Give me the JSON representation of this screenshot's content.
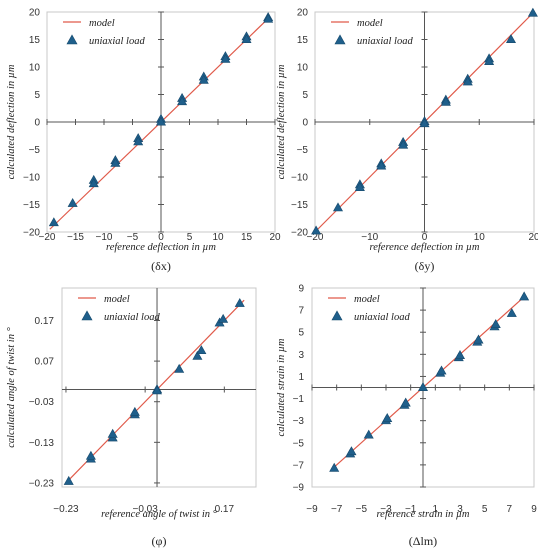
{
  "chart_data": [
    {
      "type": "scatter",
      "caption": "(δx)",
      "xlabel": "reference deflection in µm",
      "ylabel": "calculated deflection in µm",
      "xlim": [
        -20,
        20
      ],
      "ylim": [
        -20,
        20
      ],
      "xticks": [
        -20,
        -15,
        -10,
        -5,
        0,
        5,
        10,
        15,
        20
      ],
      "yticks": [
        -20,
        -15,
        -10,
        -5,
        0,
        5,
        10,
        15,
        20
      ],
      "xtick_labels": [
        "−20",
        "−15",
        "−10",
        "−5",
        "0",
        "5",
        "10",
        "15",
        "20"
      ],
      "ytick_labels": [
        "−20",
        "−15",
        "−10",
        "−5",
        "0",
        "5",
        "10",
        "15",
        "20"
      ],
      "grid": false,
      "legend_position": "top-left",
      "series": [
        {
          "name": "model",
          "kind": "line",
          "color": "#e05a4a",
          "x": [
            -19.5,
            18.8
          ],
          "y": [
            -19.5,
            18.8
          ]
        },
        {
          "name": "uniaxial load",
          "kind": "marker",
          "color": "#1f5f8b",
          "x": [
            -18.8,
            -15.5,
            -11.8,
            -11.8,
            -8,
            -8,
            -4,
            -4,
            0,
            0,
            3.7,
            3.7,
            7.5,
            7.5,
            11.3,
            11.3,
            15,
            15,
            18.8,
            18.8
          ],
          "y": [
            -18.3,
            -14.8,
            -10.6,
            -11.2,
            -7.0,
            -7.5,
            -3.0,
            -3.6,
            0.5,
            0.0,
            4.3,
            3.7,
            8.2,
            7.6,
            11.9,
            11.4,
            15.5,
            15.0,
            19.0,
            18.7
          ]
        }
      ]
    },
    {
      "type": "scatter",
      "caption": "(δy)",
      "xlabel": "reference deflection in µm",
      "ylabel": "calculated deflection in µm",
      "xlim": [
        -20,
        20
      ],
      "ylim": [
        -20,
        20
      ],
      "xticks": [
        -20,
        -10,
        0,
        10,
        20
      ],
      "yticks": [
        -20,
        -15,
        -10,
        -5,
        0,
        5,
        10,
        15,
        20
      ],
      "xtick_labels": [
        "−20",
        "−10",
        "0",
        "10",
        "20"
      ],
      "ytick_labels": [
        "−20",
        "−15",
        "−10",
        "−5",
        "0",
        "5",
        "10",
        "15",
        "20"
      ],
      "grid": false,
      "legend_position": "top-left",
      "series": [
        {
          "name": "model",
          "kind": "line",
          "color": "#e05a4a",
          "x": [
            -20,
            20
          ],
          "y": [
            -20,
            20
          ]
        },
        {
          "name": "uniaxial load",
          "kind": "marker",
          "color": "#1f5f8b",
          "x": [
            -19.8,
            -15.8,
            -11.8,
            -11.8,
            -7.9,
            -7.9,
            -3.9,
            -3.9,
            0,
            0,
            3.9,
            3.9,
            7.9,
            7.9,
            11.8,
            11.8,
            15.8,
            19.8
          ],
          "y": [
            -19.8,
            -15.6,
            -11.4,
            -11.9,
            -7.6,
            -8.0,
            -3.7,
            -4.2,
            0.1,
            -0.3,
            4.0,
            3.6,
            7.8,
            7.3,
            11.5,
            11.0,
            15.0,
            19.8
          ]
        }
      ]
    },
    {
      "type": "scatter",
      "caption": "(φ)",
      "xlabel": "reference angle of twist in °",
      "ylabel": "calculated angle of twist in °",
      "xlim": [
        -0.24,
        0.25
      ],
      "ylim": [
        -0.24,
        0.25
      ],
      "xticks": [
        -0.23,
        -0.03,
        0.17
      ],
      "yticks": [
        -0.23,
        -0.13,
        -0.03,
        0.07,
        0.17
      ],
      "xtick_labels": [
        "−0.23",
        "−0.03",
        "0.17"
      ],
      "ytick_labels": [
        "−0.23",
        "−0.13",
        "−0.03",
        "0.07",
        "0.17"
      ],
      "grid": false,
      "legend_position": "top-left",
      "series": [
        {
          "name": "model",
          "kind": "line",
          "color": "#e05a4a",
          "x": [
            -0.23,
            0.22
          ],
          "y": [
            -0.23,
            0.22
          ]
        },
        {
          "name": "uniaxial load",
          "kind": "marker",
          "color": "#1f5f8b",
          "x": [
            -0.223,
            -0.167,
            -0.167,
            -0.112,
            -0.112,
            -0.056,
            -0.056,
            0.0,
            0.0,
            0.056,
            0.102,
            0.112,
            0.158,
            0.167,
            0.209
          ],
          "y": [
            -0.226,
            -0.171,
            -0.164,
            -0.119,
            -0.11,
            -0.062,
            -0.056,
            0.0,
            -0.003,
            0.05,
            0.082,
            0.096,
            0.164,
            0.173,
            0.212
          ]
        }
      ]
    },
    {
      "type": "scatter",
      "caption": "(Δlm)",
      "xlabel": "reference strain in µm",
      "ylabel": "calculated strain in µm",
      "xlim": [
        -9,
        9
      ],
      "ylim": [
        -9,
        9
      ],
      "xticks": [
        -9,
        -7,
        -5,
        -3,
        -1,
        1,
        3,
        5,
        7,
        9
      ],
      "yticks": [
        -9,
        -7,
        -5,
        -3,
        -1,
        1,
        3,
        5,
        7,
        9
      ],
      "xtick_labels": [
        "−9",
        "−7",
        "−5",
        "−3",
        "−1",
        "1",
        "3",
        "5",
        "7",
        "9"
      ],
      "ytick_labels": [
        "−9",
        "−7",
        "−5",
        "−3",
        "−1",
        "1",
        "3",
        "5",
        "7",
        "9"
      ],
      "grid": false,
      "legend_position": "top-left",
      "series": [
        {
          "name": "model",
          "kind": "line",
          "color": "#e05a4a",
          "x": [
            -7.3,
            8.2
          ],
          "y": [
            -7.3,
            8.2
          ]
        },
        {
          "name": "uniaxial load",
          "kind": "marker",
          "color": "#1f5f8b",
          "x": [
            -7.2,
            -5.9,
            -5.8,
            -4.4,
            -3.0,
            -2.9,
            -1.5,
            -1.4,
            0.0,
            1.4,
            1.5,
            2.9,
            3.0,
            4.4,
            4.5,
            5.8,
            5.9,
            7.2,
            8.2
          ],
          "y": [
            -7.3,
            -6.0,
            -5.8,
            -4.3,
            -3.0,
            -2.8,
            -1.6,
            -1.4,
            0.0,
            1.3,
            1.5,
            2.7,
            2.9,
            4.1,
            4.3,
            5.5,
            5.7,
            6.7,
            8.2
          ]
        }
      ]
    }
  ]
}
